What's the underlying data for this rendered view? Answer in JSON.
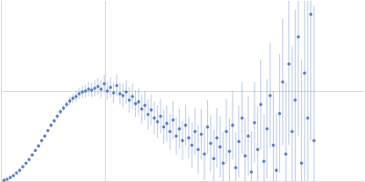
{
  "chart_data": {
    "type": "scatter",
    "color": "#3a66b8",
    "marker": "circle",
    "x": [
      0.003,
      0.006,
      0.009,
      0.012,
      0.015,
      0.018,
      0.021,
      0.024,
      0.027,
      0.03,
      0.033,
      0.036,
      0.039,
      0.042,
      0.045,
      0.048,
      0.051,
      0.054,
      0.057,
      0.06,
      0.063,
      0.066,
      0.069,
      0.072,
      0.075,
      0.078,
      0.081,
      0.084,
      0.087,
      0.09,
      0.093,
      0.096,
      0.099,
      0.102,
      0.105,
      0.108,
      0.111,
      0.114,
      0.117,
      0.12,
      0.123,
      0.126,
      0.129,
      0.132,
      0.135,
      0.138,
      0.141,
      0.144,
      0.147,
      0.15,
      0.153,
      0.156,
      0.159,
      0.162,
      0.165,
      0.168,
      0.171,
      0.174,
      0.177,
      0.18,
      0.183,
      0.186,
      0.189,
      0.192,
      0.195,
      0.198,
      0.201,
      0.204,
      0.207,
      0.21,
      0.213,
      0.216,
      0.219,
      0.222,
      0.225,
      0.228,
      0.231,
      0.234,
      0.237,
      0.24,
      0.243,
      0.246,
      0.249,
      0.252,
      0.255,
      0.258,
      0.261,
      0.264,
      0.267,
      0.27,
      0.273,
      0.276,
      0.279,
      0.282,
      0.285,
      0.288,
      0.291,
      0.294,
      0.297,
      0.3
    ],
    "values": [
      0.01,
      0.02,
      0.04,
      0.06,
      0.09,
      0.12,
      0.16,
      0.2,
      0.24,
      0.29,
      0.34,
      0.39,
      0.45,
      0.5,
      0.56,
      0.62,
      0.67,
      0.72,
      0.77,
      0.81,
      0.85,
      0.89,
      0.92,
      0.94,
      0.97,
      0.99,
      1.0,
      1.02,
      1.01,
      1.03,
      1.05,
      1.02,
      1.08,
      1.0,
      1.04,
      0.98,
      1.06,
      0.97,
      0.95,
      0.99,
      0.9,
      0.94,
      0.86,
      0.88,
      0.8,
      0.84,
      0.74,
      0.79,
      0.7,
      0.66,
      0.72,
      0.6,
      0.64,
      0.55,
      0.68,
      0.5,
      0.58,
      0.45,
      0.62,
      0.48,
      0.4,
      0.55,
      0.35,
      0.52,
      0.3,
      0.6,
      0.42,
      0.25,
      0.48,
      0.38,
      0.2,
      0.55,
      0.33,
      0.62,
      0.15,
      0.44,
      0.7,
      0.28,
      0.5,
      0.1,
      0.65,
      0.35,
      0.85,
      0.22,
      0.58,
      0.95,
      0.4,
      0.12,
      0.75,
      1.1,
      0.3,
      1.3,
      0.55,
      0.9,
      1.6,
      0.2,
      1.2,
      0.7,
      1.85,
      0.45
    ],
    "error": [
      0.005,
      0.005,
      0.005,
      0.006,
      0.006,
      0.007,
      0.007,
      0.008,
      0.008,
      0.01,
      0.01,
      0.012,
      0.012,
      0.015,
      0.015,
      0.02,
      0.02,
      0.025,
      0.03,
      0.03,
      0.04,
      0.05,
      0.05,
      0.06,
      0.06,
      0.07,
      0.07,
      0.08,
      0.08,
      0.09,
      0.09,
      0.1,
      0.1,
      0.1,
      0.11,
      0.11,
      0.12,
      0.12,
      0.13,
      0.13,
      0.14,
      0.14,
      0.15,
      0.15,
      0.16,
      0.16,
      0.17,
      0.17,
      0.18,
      0.18,
      0.19,
      0.19,
      0.2,
      0.2,
      0.21,
      0.21,
      0.22,
      0.22,
      0.23,
      0.23,
      0.25,
      0.26,
      0.27,
      0.28,
      0.29,
      0.3,
      0.31,
      0.32,
      0.33,
      0.34,
      0.35,
      0.36,
      0.37,
      0.38,
      0.39,
      0.4,
      0.4,
      0.42,
      0.44,
      0.45,
      0.45,
      0.48,
      0.5,
      0.52,
      0.55,
      0.58,
      0.6,
      0.63,
      0.66,
      0.7,
      0.8,
      0.9,
      0.95,
      1.0,
      1.1,
      1.15,
      1.2,
      1.3,
      1.4,
      1.5
    ],
    "xlim": [
      0,
      0.348
    ],
    "xticks": [
      0.1
    ],
    "ylim": [
      0,
      2
    ],
    "yticks": [
      1
    ],
    "grid": true,
    "tick_labels": false
  }
}
